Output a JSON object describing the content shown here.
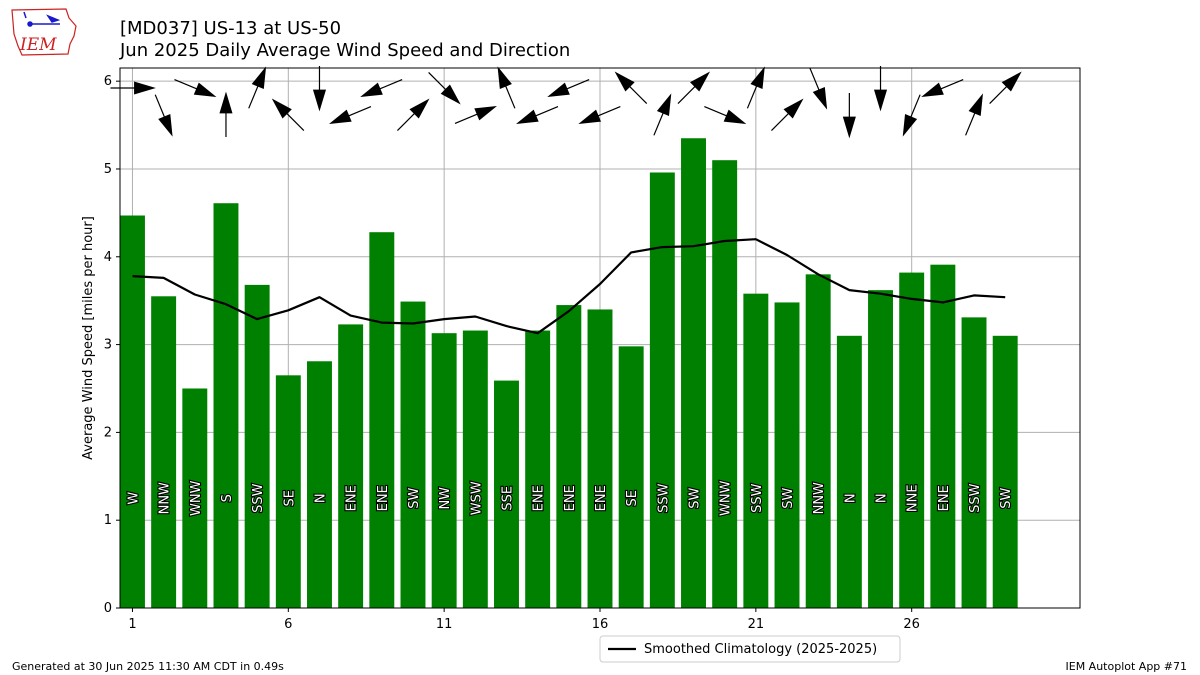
{
  "header": {
    "title_line1": "[MD037] US-13 at US-50",
    "title_line2": "Jun 2025 Daily Average Wind Speed and Direction",
    "logo_text": "IEM"
  },
  "footer": {
    "generated": "Generated at 30 Jun 2025 11:30 AM CDT in 0.49s",
    "app": "IEM Autoplot App #71"
  },
  "colors": {
    "bar": "#008000",
    "line": "#000000",
    "grid": "#b0b0b0",
    "logo_red": "#cc2222",
    "logo_blue": "#1a1acc"
  },
  "chart_data": {
    "type": "bar",
    "ylabel": "Average Wind Speed [miles per hour]",
    "xlabel": "",
    "ylim": [
      0,
      6.15
    ],
    "xlim": [
      0.6,
      31.4
    ],
    "x_ticks": [
      1,
      6,
      11,
      16,
      21,
      26
    ],
    "y_ticks": [
      0,
      1,
      2,
      3,
      4,
      5,
      6
    ],
    "grid": true,
    "legend_position": "bottom-center",
    "days": [
      1,
      2,
      3,
      4,
      5,
      6,
      7,
      8,
      9,
      10,
      11,
      12,
      13,
      14,
      15,
      16,
      17,
      18,
      19,
      20,
      21,
      22,
      23,
      24,
      25,
      26,
      27,
      28,
      29
    ],
    "series": [
      {
        "name": "",
        "kind": "bar",
        "values": [
          4.47,
          3.55,
          2.5,
          4.61,
          3.68,
          2.65,
          2.81,
          3.23,
          4.28,
          3.49,
          3.13,
          3.16,
          2.59,
          3.16,
          3.45,
          3.4,
          2.98,
          4.96,
          5.35,
          5.1,
          3.58,
          3.48,
          3.8,
          3.1,
          3.62,
          3.82,
          3.91,
          3.31,
          3.1
        ]
      },
      {
        "name": "Smoothed Climatology (2025-2025)",
        "kind": "line",
        "values": [
          3.78,
          3.76,
          3.57,
          3.46,
          3.29,
          3.39,
          3.54,
          3.33,
          3.25,
          3.24,
          3.29,
          3.32,
          3.21,
          3.13,
          3.38,
          3.69,
          4.05,
          4.11,
          4.12,
          4.18,
          4.2,
          4.02,
          3.8,
          3.62,
          3.58,
          3.52,
          3.48,
          3.56,
          3.54
        ]
      }
    ],
    "direction_labels": [
      "W",
      "NNW",
      "WNW",
      "S",
      "SSW",
      "SE",
      "N",
      "ENE",
      "ENE",
      "SW",
      "NW",
      "WSW",
      "SSE",
      "ENE",
      "ENE",
      "ENE",
      "SE",
      "SSW",
      "SW",
      "WNW",
      "SSW",
      "SW",
      "NNW",
      "N",
      "N",
      "NNE",
      "ENE",
      "SSW",
      "SW"
    ],
    "direction_degrees": [
      270,
      337.5,
      292.5,
      180,
      202.5,
      135,
      0,
      67.5,
      67.5,
      225,
      315,
      247.5,
      157.5,
      67.5,
      67.5,
      67.5,
      135,
      202.5,
      225,
      292.5,
      202.5,
      225,
      337.5,
      0,
      0,
      22.5,
      67.5,
      202.5,
      225
    ]
  }
}
